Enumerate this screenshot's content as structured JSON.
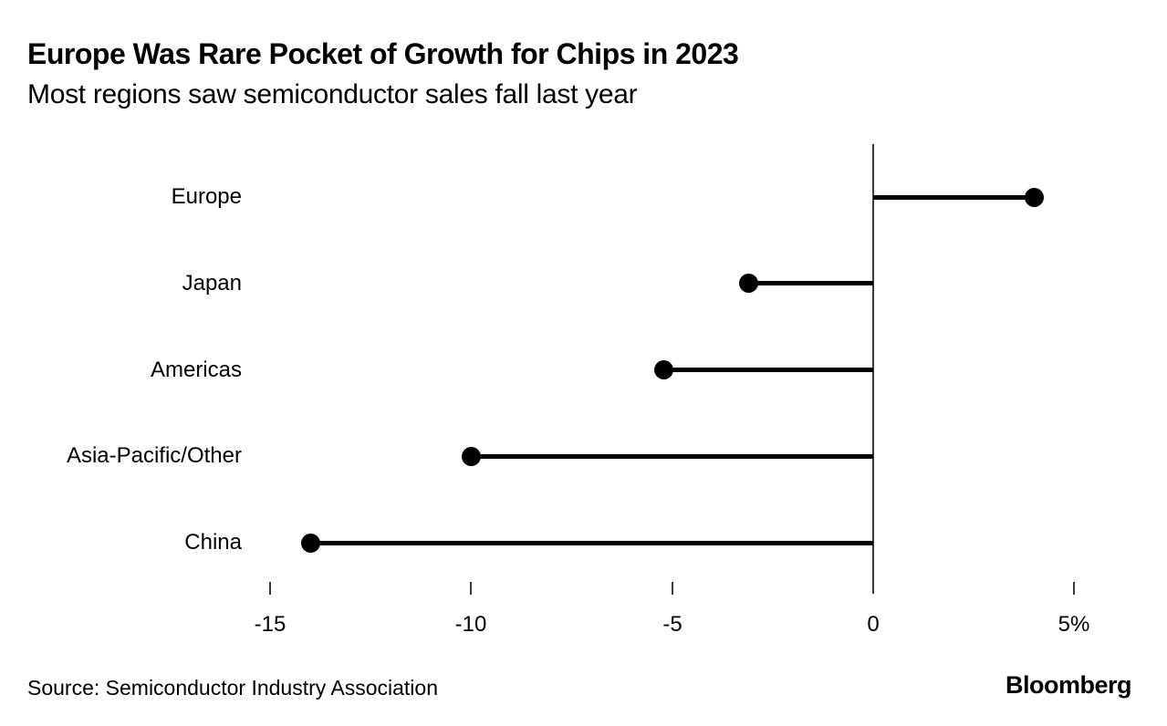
{
  "header": {
    "title": "Europe Was Rare Pocket of Growth for Chips in 2023",
    "subtitle": "Most regions saw semiconductor sales fall last year"
  },
  "chart_data": {
    "type": "bar",
    "style": "lollipop",
    "orientation": "horizontal",
    "title": "Europe Was Rare Pocket of Growth for Chips in 2023",
    "subtitle": "Most regions saw semiconductor sales fall last year",
    "categories": [
      "Europe",
      "Japan",
      "Americas",
      "Asia-Pacific/Other",
      "China"
    ],
    "values": [
      4.0,
      -3.1,
      -5.2,
      -10.0,
      -14.0
    ],
    "unit": "%",
    "xlabel": "",
    "ylabel": "",
    "xlim": [
      -15.5,
      5.8
    ],
    "grid": false,
    "legend": "none",
    "xticks": [
      {
        "value": -15,
        "label": "-15"
      },
      {
        "value": -10,
        "label": "-10"
      },
      {
        "value": -5,
        "label": "-5"
      },
      {
        "value": 0,
        "label": "0"
      },
      {
        "value": 5,
        "label": "5%"
      }
    ],
    "colors": {
      "dot": "#000000",
      "stem": "#000000",
      "axis": "#3a3a3a",
      "text": "#000000",
      "background": "#ffffff"
    }
  },
  "footer": {
    "source": "Source: Semiconductor Industry Association",
    "brand": "Bloomberg"
  }
}
